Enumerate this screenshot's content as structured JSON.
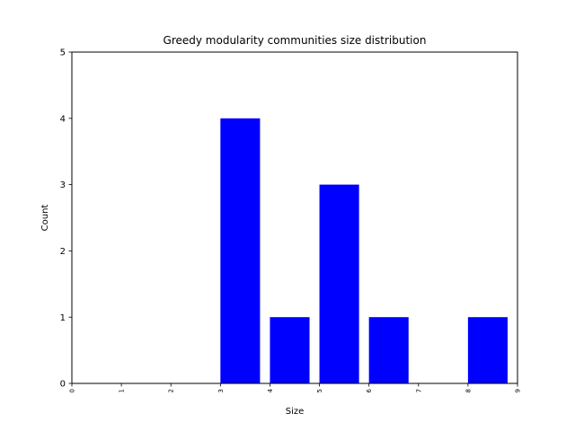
{
  "chart_data": {
    "type": "bar",
    "title": "Greedy modularity communities size distribution",
    "xlabel": "Size",
    "ylabel": "Count",
    "xlim": [
      0,
      9
    ],
    "ylim": [
      0,
      5
    ],
    "x_ticks": [
      "0",
      "1",
      "2",
      "3",
      "4",
      "5",
      "6",
      "7",
      "8",
      "9"
    ],
    "y_ticks": [
      "0",
      "1",
      "2",
      "3",
      "4",
      "5"
    ],
    "bars": [
      {
        "x_start": 3,
        "x_end": 3.8,
        "value": 4
      },
      {
        "x_start": 4,
        "x_end": 4.8,
        "value": 1
      },
      {
        "x_start": 5,
        "x_end": 5.8,
        "value": 3
      },
      {
        "x_start": 6,
        "x_end": 6.8,
        "value": 1
      },
      {
        "x_start": 8,
        "x_end": 8.8,
        "value": 1
      }
    ],
    "bar_color": "#0000ff",
    "grid": false,
    "legend": "none"
  }
}
